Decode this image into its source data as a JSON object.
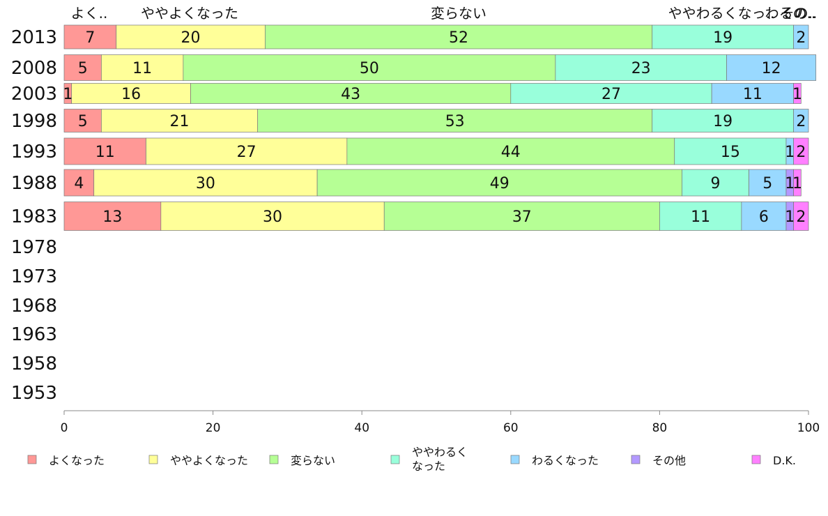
{
  "colors": {
    "background": "#ffffff",
    "axis": "#888888",
    "bar_border": "#777777"
  },
  "chart_data": {
    "type": "bar",
    "orientation": "horizontal",
    "stacked": true,
    "title": "",
    "xlabel": "",
    "ylabel": "",
    "xlim": [
      0,
      100
    ],
    "x_ticks": [
      0,
      20,
      40,
      60,
      80,
      100
    ],
    "grid": false,
    "legend_position": "bottom",
    "categories": [
      "2013",
      "2008",
      "2003",
      "1998",
      "1993",
      "1988",
      "1983",
      "1978",
      "1973",
      "1968",
      "1963",
      "1958",
      "1953"
    ],
    "top_labels": [
      "よく..",
      "ややよくなった",
      "変らない",
      "ややわるくなっ..",
      "わるの..",
      "その.."
    ],
    "series": [
      {
        "name": "よくなった",
        "color": "#ff9896",
        "values": [
          7,
          5,
          1,
          5,
          11,
          4,
          13,
          null,
          null,
          null,
          null,
          null,
          null
        ]
      },
      {
        "name": "ややよくなった",
        "color": "#ffff99",
        "values": [
          20,
          11,
          16,
          21,
          27,
          30,
          30,
          null,
          null,
          null,
          null,
          null,
          null
        ]
      },
      {
        "name": "変らない",
        "color": "#b6ff95",
        "values": [
          52,
          50,
          43,
          53,
          44,
          49,
          37,
          null,
          null,
          null,
          null,
          null,
          null
        ]
      },
      {
        "name": "ややわるく\nなった",
        "color": "#99ffdb",
        "values": [
          19,
          23,
          27,
          19,
          15,
          9,
          11,
          null,
          null,
          null,
          null,
          null,
          null
        ]
      },
      {
        "name": "わるくなった",
        "color": "#99d9ff",
        "values": [
          2,
          12,
          11,
          2,
          1,
          5,
          6,
          null,
          null,
          null,
          null,
          null,
          null
        ]
      },
      {
        "name": "その他",
        "color": "#b399ff",
        "values": [
          0,
          0,
          0,
          0,
          0,
          1,
          1,
          null,
          null,
          null,
          null,
          null,
          null
        ]
      },
      {
        "name": "D.K.",
        "color": "#ff80ff",
        "values": [
          0,
          0,
          1,
          0,
          2,
          1,
          2,
          null,
          null,
          null,
          null,
          null,
          null
        ]
      }
    ]
  }
}
